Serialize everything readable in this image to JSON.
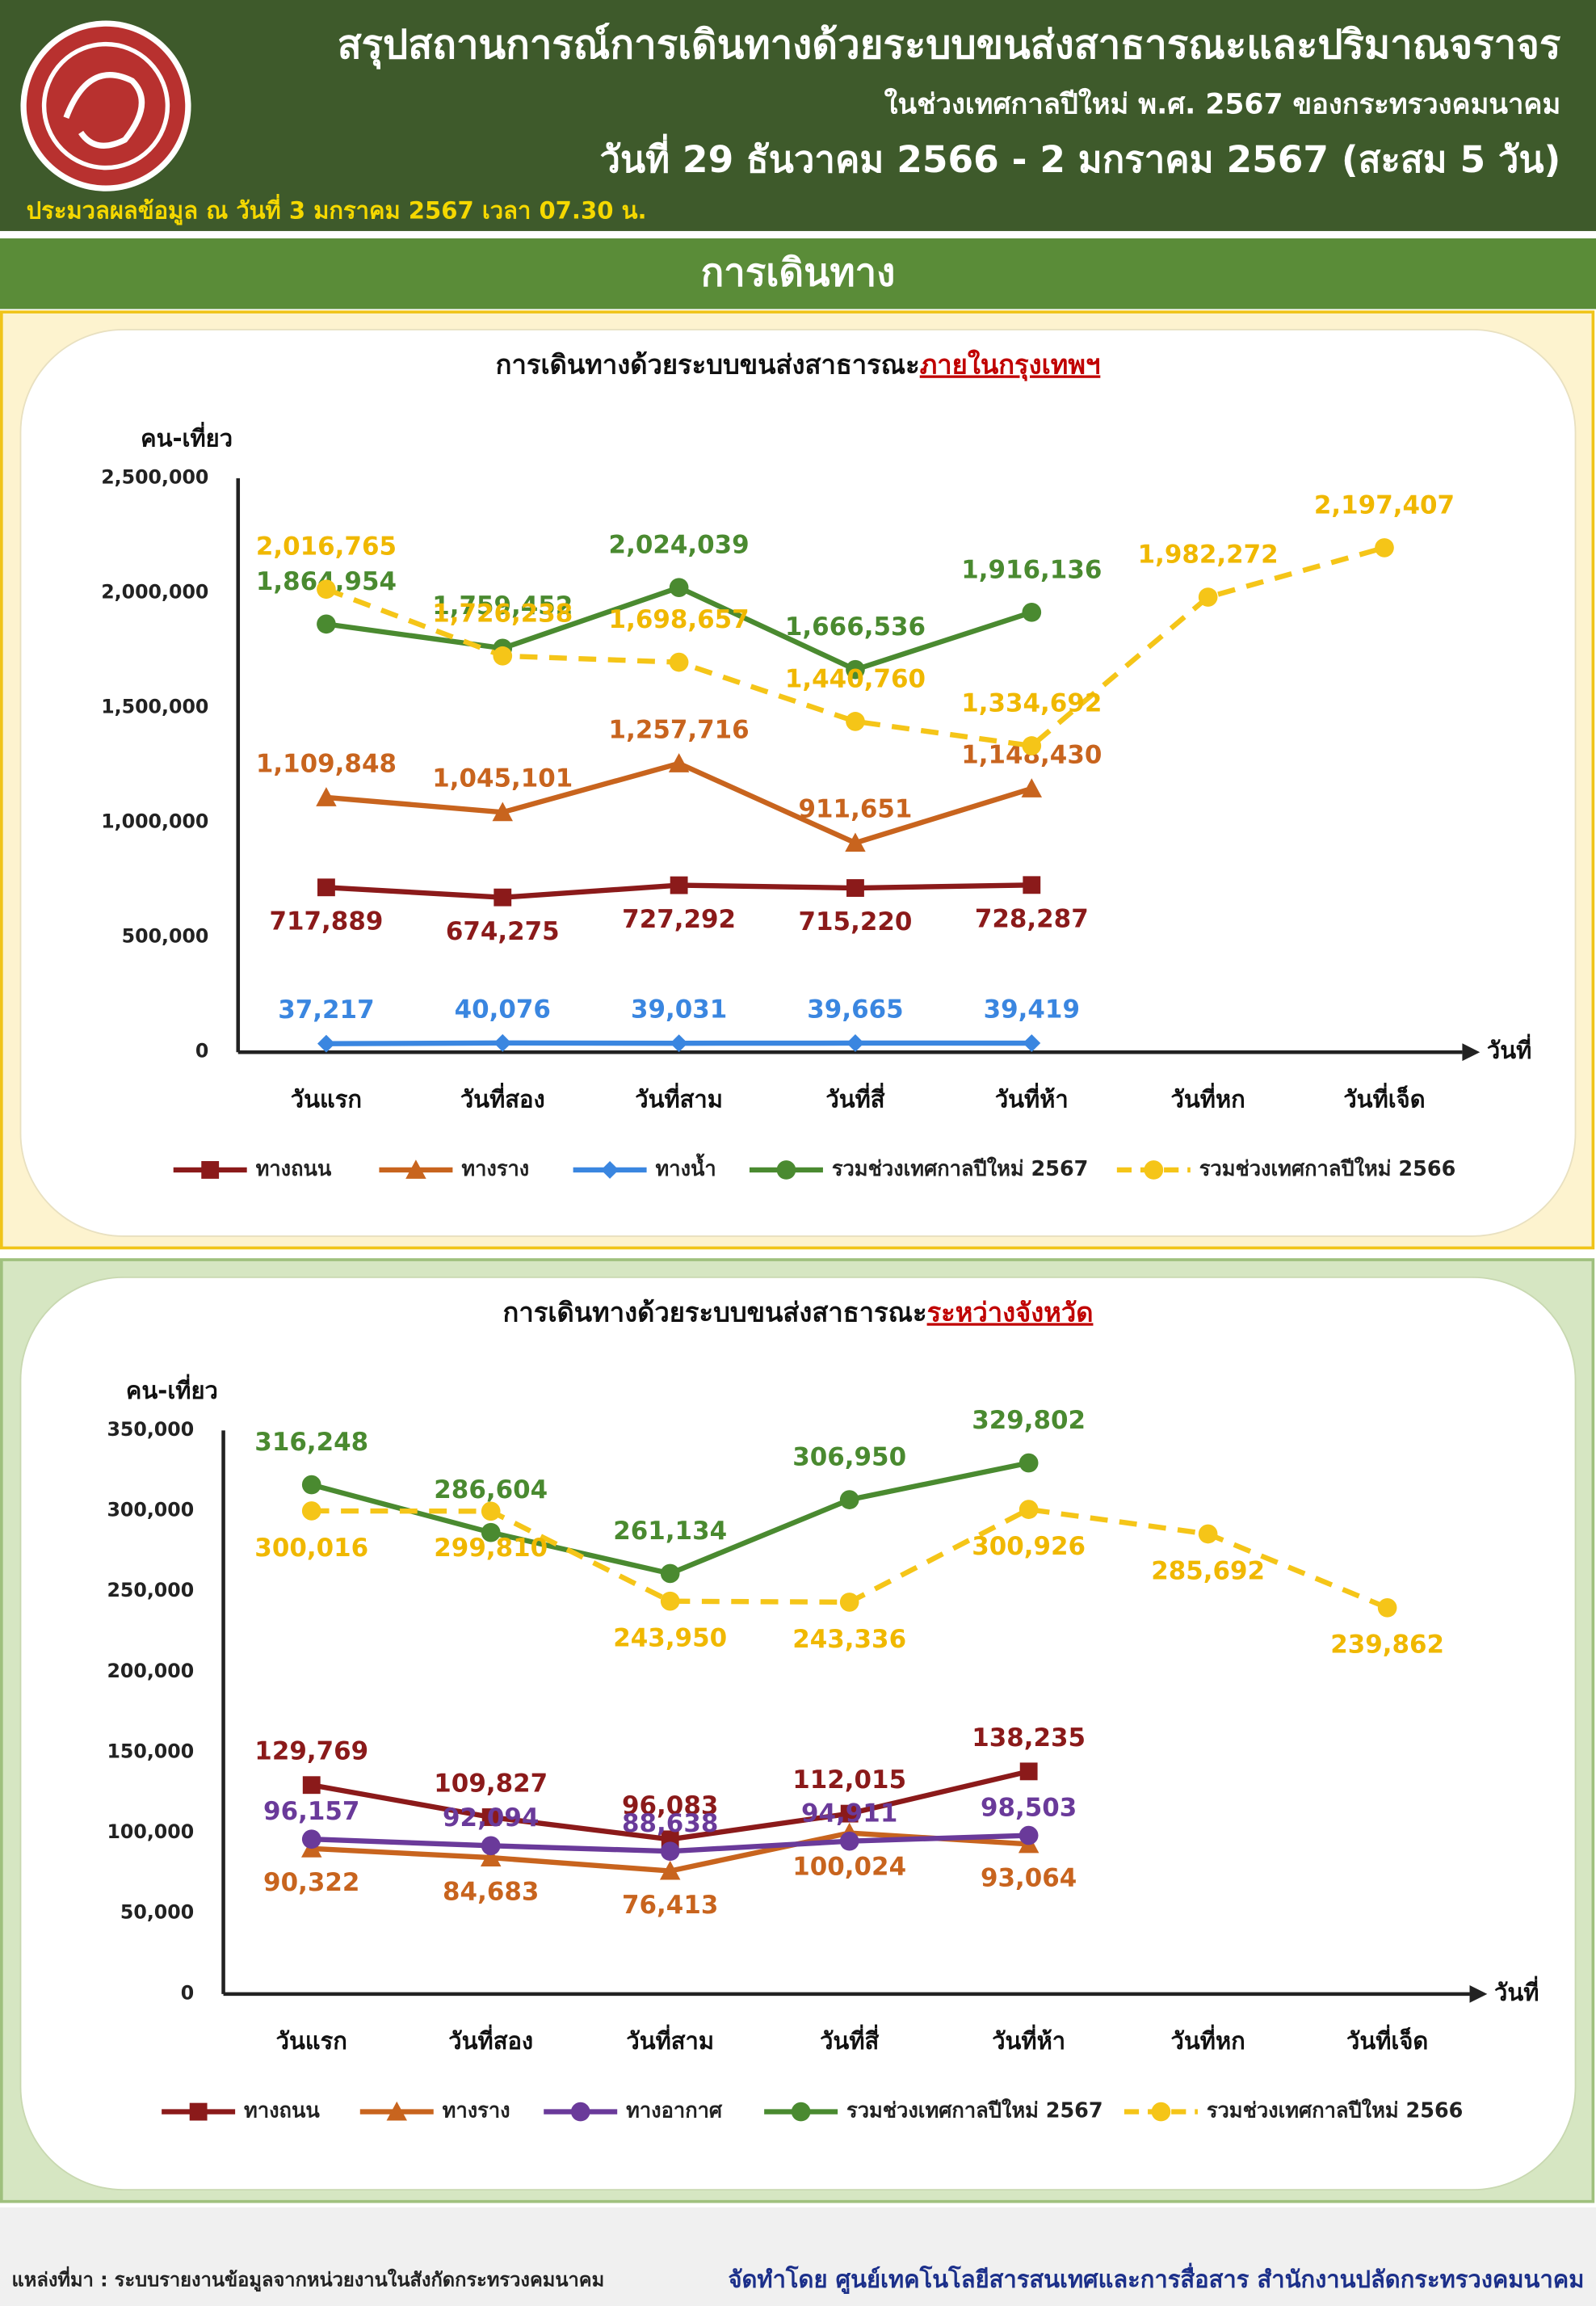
{
  "header": {
    "title": "สรุปสถานการณ์การเดินทางด้วยระบบขนส่งสาธารณะและปริมาณจราจร",
    "subtitle": "ในช่วงเทศกาลปีใหม่ พ.ศ. 2567 ของกระทรวงคมนาคม",
    "period": "วันที่ 29 ธันวาคม 2566 - 2 มกราคม 2567 (สะสม 5 วัน)",
    "processed": "ประมวลผลข้อมูล ณ วันที่ 3 มกราคม 2567 เวลา 07.30 น.",
    "section": "การเดินทาง"
  },
  "chart_data": [
    {
      "type": "line",
      "title": "การเดินทางด้วยระบบขนส่งสาธารณะ",
      "title_emphasis": "ภายในกรุงเทพฯ",
      "y_label": "คน-เที่ยว",
      "x_label": "วันที่",
      "categories": [
        "วันแรก",
        "วันที่สอง",
        "วันที่สาม",
        "วันที่สี่",
        "วันที่ห้า",
        "วันที่หก",
        "วันที่เจ็ด"
      ],
      "ylim": [
        0,
        2500000
      ],
      "yticks": [
        0,
        {
          "value": 500000,
          "label": "500,000"
        },
        {
          "value": 1000000,
          "label": "1,000,000"
        },
        {
          "value": 1500000,
          "label": "1,500,000"
        },
        {
          "value": 2000000,
          "label": "2,000,000"
        },
        {
          "value": 2500000,
          "label": "2,500,000"
        }
      ],
      "grid": false,
      "series": [
        {
          "name": "ทางถนน",
          "color": "#8b1a1a",
          "marker": "square",
          "values": [
            717889,
            674275,
            727292,
            715220,
            728287,
            null,
            null
          ],
          "value_labels": [
            "717,889",
            "674,275",
            "727,292",
            "715,220",
            "728,287",
            null,
            null
          ]
        },
        {
          "name": "ทางราง",
          "color": "#c8641e",
          "marker": "triangle",
          "values": [
            1109848,
            1045101,
            1257716,
            911651,
            1148430,
            null,
            null
          ],
          "value_labels": [
            "1,109,848",
            "1,045,101",
            "1,257,716",
            "911,651",
            "1,148,430",
            null,
            null
          ]
        },
        {
          "name": "ทางน้ำ",
          "color": "#3a86e0",
          "marker": "diamond",
          "values": [
            37217,
            40076,
            39031,
            39665,
            39419,
            null,
            null
          ],
          "value_labels": [
            "37,217",
            "40,076",
            "39,031",
            "39,665",
            "39,419",
            null,
            null
          ]
        },
        {
          "name": "รวมช่วงเทศกาลปีใหม่ 2567",
          "color": "#4a8a30",
          "marker": "circle",
          "values": [
            1864954,
            1759452,
            2024039,
            1666536,
            1916136,
            null,
            null
          ],
          "value_labels": [
            "1,864,954",
            "1,759,452",
            "2,024,039",
            "1,666,536",
            "1,916,136",
            null,
            null
          ]
        },
        {
          "name": "รวมช่วงเทศกาลปีใหม่ 2566",
          "color": "#f5c518",
          "marker": "circle",
          "dashed": true,
          "values": [
            2016765,
            1726238,
            1698657,
            1440760,
            1334692,
            1982272,
            2197407
          ],
          "value_labels": [
            "2,016,765",
            "1,726,238",
            "1,698,657",
            "1,440,760",
            "1,334,692",
            "1,982,272",
            "2,197,407"
          ]
        }
      ]
    },
    {
      "type": "line",
      "title": "การเดินทางด้วยระบบขนส่งสาธารณะ",
      "title_emphasis": "ระหว่างจังหวัด",
      "y_label": "คน-เที่ยว",
      "x_label": "วันที่",
      "categories": [
        "วันแรก",
        "วันที่สอง",
        "วันที่สาม",
        "วันที่สี่",
        "วันที่ห้า",
        "วันที่หก",
        "วันที่เจ็ด"
      ],
      "ylim": [
        0,
        350000
      ],
      "yticks": [
        0,
        {
          "value": 50000,
          "label": "50,000"
        },
        {
          "value": 100000,
          "label": "100,000"
        },
        {
          "value": 150000,
          "label": "150,000"
        },
        {
          "value": 200000,
          "label": "200,000"
        },
        {
          "value": 250000,
          "label": "250,000"
        },
        {
          "value": 300000,
          "label": "300,000"
        },
        {
          "value": 350000,
          "label": "350,000"
        }
      ],
      "grid": false,
      "series": [
        {
          "name": "ทางถนน",
          "color": "#8b1a1a",
          "marker": "square",
          "values": [
            129769,
            109827,
            96083,
            112015,
            138235,
            null,
            null
          ],
          "value_labels": [
            "129,769",
            "109,827",
            "96,083",
            "112,015",
            "138,235",
            null,
            null
          ]
        },
        {
          "name": "ทางราง",
          "color": "#c8641e",
          "marker": "triangle",
          "values": [
            90322,
            84683,
            76413,
            100024,
            93064,
            null,
            null
          ],
          "value_labels": [
            "90,322",
            "84,683",
            "76,413",
            "100,024",
            "93,064",
            null,
            null
          ]
        },
        {
          "name": "ทางอากาศ",
          "color": "#6a3a9a",
          "marker": "circle",
          "values": [
            96157,
            92094,
            88638,
            94911,
            98503,
            null,
            null
          ],
          "value_labels": [
            "96,157",
            "92,094",
            "88,638",
            "94,911",
            "98,503",
            null,
            null
          ]
        },
        {
          "name": "รวมช่วงเทศกาลปีใหม่ 2567",
          "color": "#4a8a30",
          "marker": "circle",
          "values": [
            316248,
            286604,
            261134,
            306950,
            329802,
            null,
            null
          ],
          "value_labels": [
            "316,248",
            "286,604",
            "261,134",
            "306,950",
            "329,802",
            null,
            null
          ]
        },
        {
          "name": "รวมช่วงเทศกาลปีใหม่ 2566",
          "color": "#f5c518",
          "marker": "circle",
          "dashed": true,
          "values": [
            300016,
            299810,
            243950,
            243336,
            300926,
            285692,
            239862
          ],
          "value_labels": [
            "300,016",
            "299,810",
            "243,950",
            "243,336",
            "300,926",
            "285,692",
            "239,862"
          ]
        }
      ]
    }
  ],
  "footer": {
    "source": "แหล่งที่มา : ระบบรายงานข้อมูลจากหน่วยงานในสังกัดกระทรวงคมนาคม",
    "credit": "จัดทำโดย ศูนย์เทคโนโลยีสารสนเทศและการสื่อสาร สำนักงานปลัดกระทรวงคมนาคม"
  }
}
